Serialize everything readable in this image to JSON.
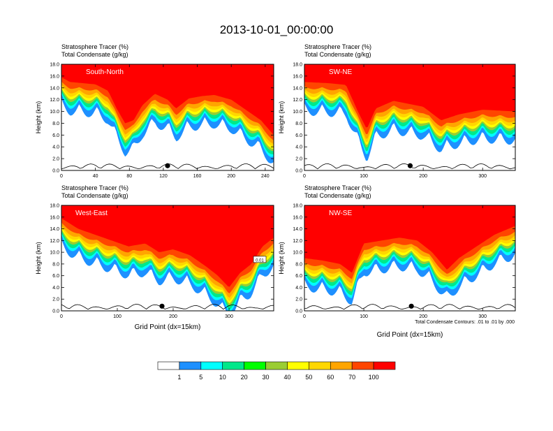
{
  "title": "2013-10-01_00:00:00",
  "colors": {
    "bands": [
      "#ffffff",
      "#1e90ff",
      "#00ffff",
      "#00e88a",
      "#00ff00",
      "#9acd32",
      "#ffff00",
      "#ffd700",
      "#ffa500",
      "#ff4500",
      "#ff0000"
    ],
    "contour": "#000000"
  },
  "panels": [
    {
      "label": "South-North",
      "tracer": "Stratosphere Tracer   (%)",
      "condensate": "Total Condensate   (g/kg)",
      "ylabel": "Height (km)",
      "xticks": [
        "0",
        "40",
        "80",
        "120",
        "160",
        "200",
        "240"
      ],
      "yticks": [
        "0.0",
        "2.0",
        "4.0",
        "6.0",
        "8.0",
        "10.0",
        "12.0",
        "14.0",
        "16.0",
        "18.0"
      ],
      "xmax": 250,
      "xlabel": ""
    },
    {
      "label": "SW-NE",
      "tracer": "Stratosphere Tracer   (%)",
      "condensate": "Total Condensate   (g/kg)",
      "ylabel": "Height (km)",
      "xticks": [
        "0",
        "100",
        "200",
        "300"
      ],
      "yticks": [
        "0.0",
        "2.0",
        "4.0",
        "6.0",
        "8.0",
        "10.0",
        "12.0",
        "14.0",
        "16.0",
        "18.0"
      ],
      "xmax": 355,
      "xlabel": ""
    },
    {
      "label": "West-East",
      "tracer": "Stratosphere Tracer   (%)",
      "condensate": "Total Condensate   (g/kg)",
      "ylabel": "Height (km)",
      "xticks": [
        "0",
        "100",
        "200",
        "300"
      ],
      "yticks": [
        "0.0",
        "2.0",
        "4.0",
        "6.0",
        "8.0",
        "10.0",
        "12.0",
        "14.0",
        "16.0",
        "18.0"
      ],
      "xmax": 380,
      "xlabel": "Grid Point (dx=15km)",
      "contour_label": "0.01"
    },
    {
      "label": "NW-SE",
      "tracer": "Stratosphere Tracer   (%)",
      "condensate": "Total Condensate   (g/kg)",
      "ylabel": "Height (km)",
      "xticks": [
        "0",
        "100",
        "200",
        "300"
      ],
      "yticks": [
        "0.0",
        "2.0",
        "4.0",
        "6.0",
        "8.0",
        "10.0",
        "12.0",
        "14.0",
        "16.0",
        "18.0"
      ],
      "xmax": 355,
      "xlabel": "Grid Point (dx=15km)",
      "note": "Total Condensate Contours: .01 to .01 by .000"
    }
  ],
  "chart_data": [
    {
      "type": "heatmap",
      "name": "South-North",
      "title": "Stratosphere Tracer (%)",
      "xlabel": "",
      "ylabel": "Height (km)",
      "xlim": [
        0,
        250
      ],
      "ylim": [
        0,
        18
      ],
      "tracer_top_height_km": [
        [
          0,
          15.8
        ],
        [
          10,
          15.0
        ],
        [
          25,
          14.8
        ],
        [
          40,
          14.6
        ],
        [
          55,
          13.5
        ],
        [
          65,
          10.5
        ],
        [
          75,
          8.0
        ],
        [
          85,
          8.5
        ],
        [
          95,
          11.0
        ],
        [
          110,
          13.0
        ],
        [
          125,
          12.0
        ],
        [
          135,
          10.5
        ],
        [
          150,
          12.2
        ],
        [
          165,
          12.6
        ],
        [
          180,
          12.8
        ],
        [
          200,
          12.0
        ],
        [
          220,
          10.0
        ],
        [
          235,
          8.5
        ],
        [
          250,
          6.0
        ]
      ]
    },
    {
      "type": "heatmap",
      "name": "SW-NE",
      "title": "Stratosphere Tracer (%)",
      "xlabel": "",
      "ylabel": "Height (km)",
      "xlim": [
        0,
        355
      ],
      "ylim": [
        0,
        18
      ],
      "tracer_top_height_km": [
        [
          0,
          15.0
        ],
        [
          40,
          14.8
        ],
        [
          70,
          14.5
        ],
        [
          90,
          10.0
        ],
        [
          105,
          7.0
        ],
        [
          120,
          10.5
        ],
        [
          150,
          11.8
        ],
        [
          200,
          10.8
        ],
        [
          230,
          8.5
        ],
        [
          260,
          9.5
        ],
        [
          300,
          10.3
        ],
        [
          355,
          10.0
        ]
      ]
    },
    {
      "type": "heatmap",
      "name": "West-East",
      "title": "Stratosphere Tracer (%)",
      "xlabel": "Grid Point (dx=15km)",
      "ylabel": "Height (km)",
      "xlim": [
        0,
        380
      ],
      "ylim": [
        0,
        18
      ],
      "tracer_top_height_km": [
        [
          0,
          15.8
        ],
        [
          30,
          14.0
        ],
        [
          60,
          13.0
        ],
        [
          90,
          12.0
        ],
        [
          120,
          11.0
        ],
        [
          150,
          11.5
        ],
        [
          175,
          10.0
        ],
        [
          200,
          10.5
        ],
        [
          230,
          9.5
        ],
        [
          260,
          7.5
        ],
        [
          280,
          6.0
        ],
        [
          300,
          4.0
        ],
        [
          320,
          6.5
        ],
        [
          340,
          8.0
        ],
        [
          360,
          11.0
        ],
        [
          380,
          12.5
        ]
      ]
    },
    {
      "type": "heatmap",
      "name": "NW-SE",
      "title": "Stratosphere Tracer (%)",
      "xlabel": "Grid Point (dx=15km)",
      "ylabel": "Height (km)",
      "xlim": [
        0,
        355
      ],
      "ylim": [
        0,
        18
      ],
      "tracer_top_height_km": [
        [
          0,
          9.0
        ],
        [
          30,
          8.6
        ],
        [
          60,
          8.0
        ],
        [
          80,
          6.5
        ],
        [
          100,
          11.5
        ],
        [
          130,
          12.0
        ],
        [
          160,
          12.5
        ],
        [
          190,
          12.0
        ],
        [
          215,
          10.0
        ],
        [
          240,
          7.0
        ],
        [
          260,
          9.0
        ],
        [
          290,
          11.0
        ],
        [
          320,
          13.0
        ],
        [
          355,
          14.5
        ]
      ]
    },
    {
      "type": "bar",
      "name": "Colorbar",
      "title": "Stratosphere Tracer (%)",
      "categories": [
        "<1",
        "1-5",
        "5-10",
        "10-20",
        "20-30",
        "30-40",
        "40-50",
        "50-60",
        "60-70",
        "70-100",
        ">100"
      ],
      "tick_labels": [
        "1",
        "5",
        "10",
        "20",
        "30",
        "40",
        "50",
        "60",
        "70",
        "100"
      ]
    }
  ]
}
